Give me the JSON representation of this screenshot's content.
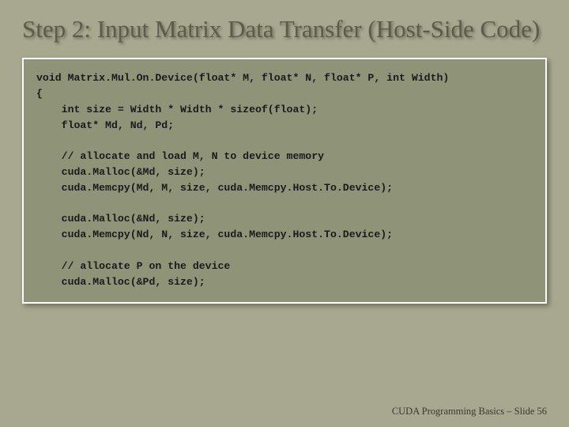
{
  "slide": {
    "title": "Step 2: Input Matrix Data Transfer (Host-Side Code)",
    "code": "void Matrix.Mul.On.Device(float* M, float* N, float* P, int Width)\n{\n    int size = Width * Width * sizeof(float);\n    float* Md, Nd, Pd;\n\n    // allocate and load M, N to device memory\n    cuda.Malloc(&Md, size);\n    cuda.Memcpy(Md, M, size, cuda.Memcpy.Host.To.Device);\n\n    cuda.Malloc(&Nd, size);\n    cuda.Memcpy(Nd, N, size, cuda.Memcpy.Host.To.Device);\n\n    // allocate P on the device\n    cuda.Malloc(&Pd, size);",
    "footer": "CUDA Programming Basics – Slide 56"
  },
  "styling": {
    "background_color": "#a8a890",
    "title_color": "#5c5c4a",
    "title_fontsize": 31,
    "title_font": "Georgia, serif",
    "code_box_bg": "#8f9478",
    "code_box_border": "#ffffff",
    "code_font": "Courier New, monospace",
    "code_fontsize": 13.2,
    "code_color": "#1a1a1a",
    "footer_fontsize": 12.5,
    "footer_color": "#3a3a2e",
    "slide_width": 720,
    "slide_height": 540
  }
}
